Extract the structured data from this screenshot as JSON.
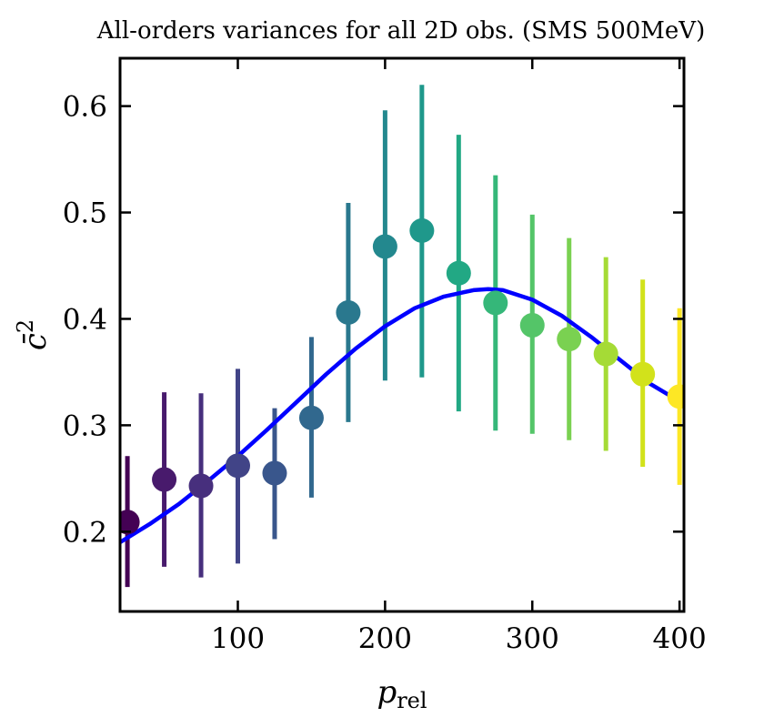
{
  "chart_data": {
    "type": "scatter",
    "title": "All-orders variances for all 2D obs. (SMS 500MeV)",
    "xlabel_main": "p",
    "xlabel_sub": "rel",
    "ylabel_main": "c̄",
    "ylabel_sup": "2",
    "xlim": [
      20,
      403
    ],
    "ylim": [
      0.125,
      0.645
    ],
    "xticks": [
      100,
      200,
      300,
      400
    ],
    "yticks": [
      0.2,
      0.3,
      0.4,
      0.5,
      0.6
    ],
    "grid": false,
    "legend": "none",
    "series": [
      {
        "kind": "errorbar-points",
        "x": [
          25,
          50,
          75,
          100,
          125,
          150,
          175,
          200,
          225,
          250,
          275,
          300,
          325,
          350,
          375,
          400
        ],
        "y": [
          0.209,
          0.249,
          0.243,
          0.262,
          0.255,
          0.307,
          0.406,
          0.468,
          0.483,
          0.443,
          0.415,
          0.394,
          0.381,
          0.367,
          0.348,
          0.327
        ],
        "yerr_low": [
          0.148,
          0.167,
          0.157,
          0.17,
          0.193,
          0.232,
          0.303,
          0.342,
          0.345,
          0.313,
          0.295,
          0.292,
          0.286,
          0.276,
          0.261,
          0.244
        ],
        "yerr_high": [
          0.271,
          0.331,
          0.33,
          0.353,
          0.316,
          0.383,
          0.509,
          0.596,
          0.62,
          0.573,
          0.535,
          0.498,
          0.476,
          0.458,
          0.437,
          0.41
        ],
        "colors": [
          "#440154",
          "#481a6c",
          "#472f7d",
          "#414487",
          "#39568c",
          "#31688e",
          "#2a788e",
          "#23888e",
          "#1f988b",
          "#22a884",
          "#35b779",
          "#54c568",
          "#7ad151",
          "#a5db36",
          "#d2e21b",
          "#fde725"
        ]
      },
      {
        "kind": "line",
        "color": "#0000ff",
        "x": [
          20,
          40,
          60,
          80,
          100,
          120,
          140,
          160,
          180,
          200,
          220,
          240,
          260,
          270,
          280,
          300,
          320,
          340,
          360,
          380,
          403
        ],
        "y": [
          0.19,
          0.207,
          0.226,
          0.248,
          0.271,
          0.296,
          0.322,
          0.348,
          0.372,
          0.393,
          0.41,
          0.421,
          0.427,
          0.428,
          0.427,
          0.418,
          0.403,
          0.383,
          0.361,
          0.339,
          0.32
        ]
      }
    ]
  }
}
